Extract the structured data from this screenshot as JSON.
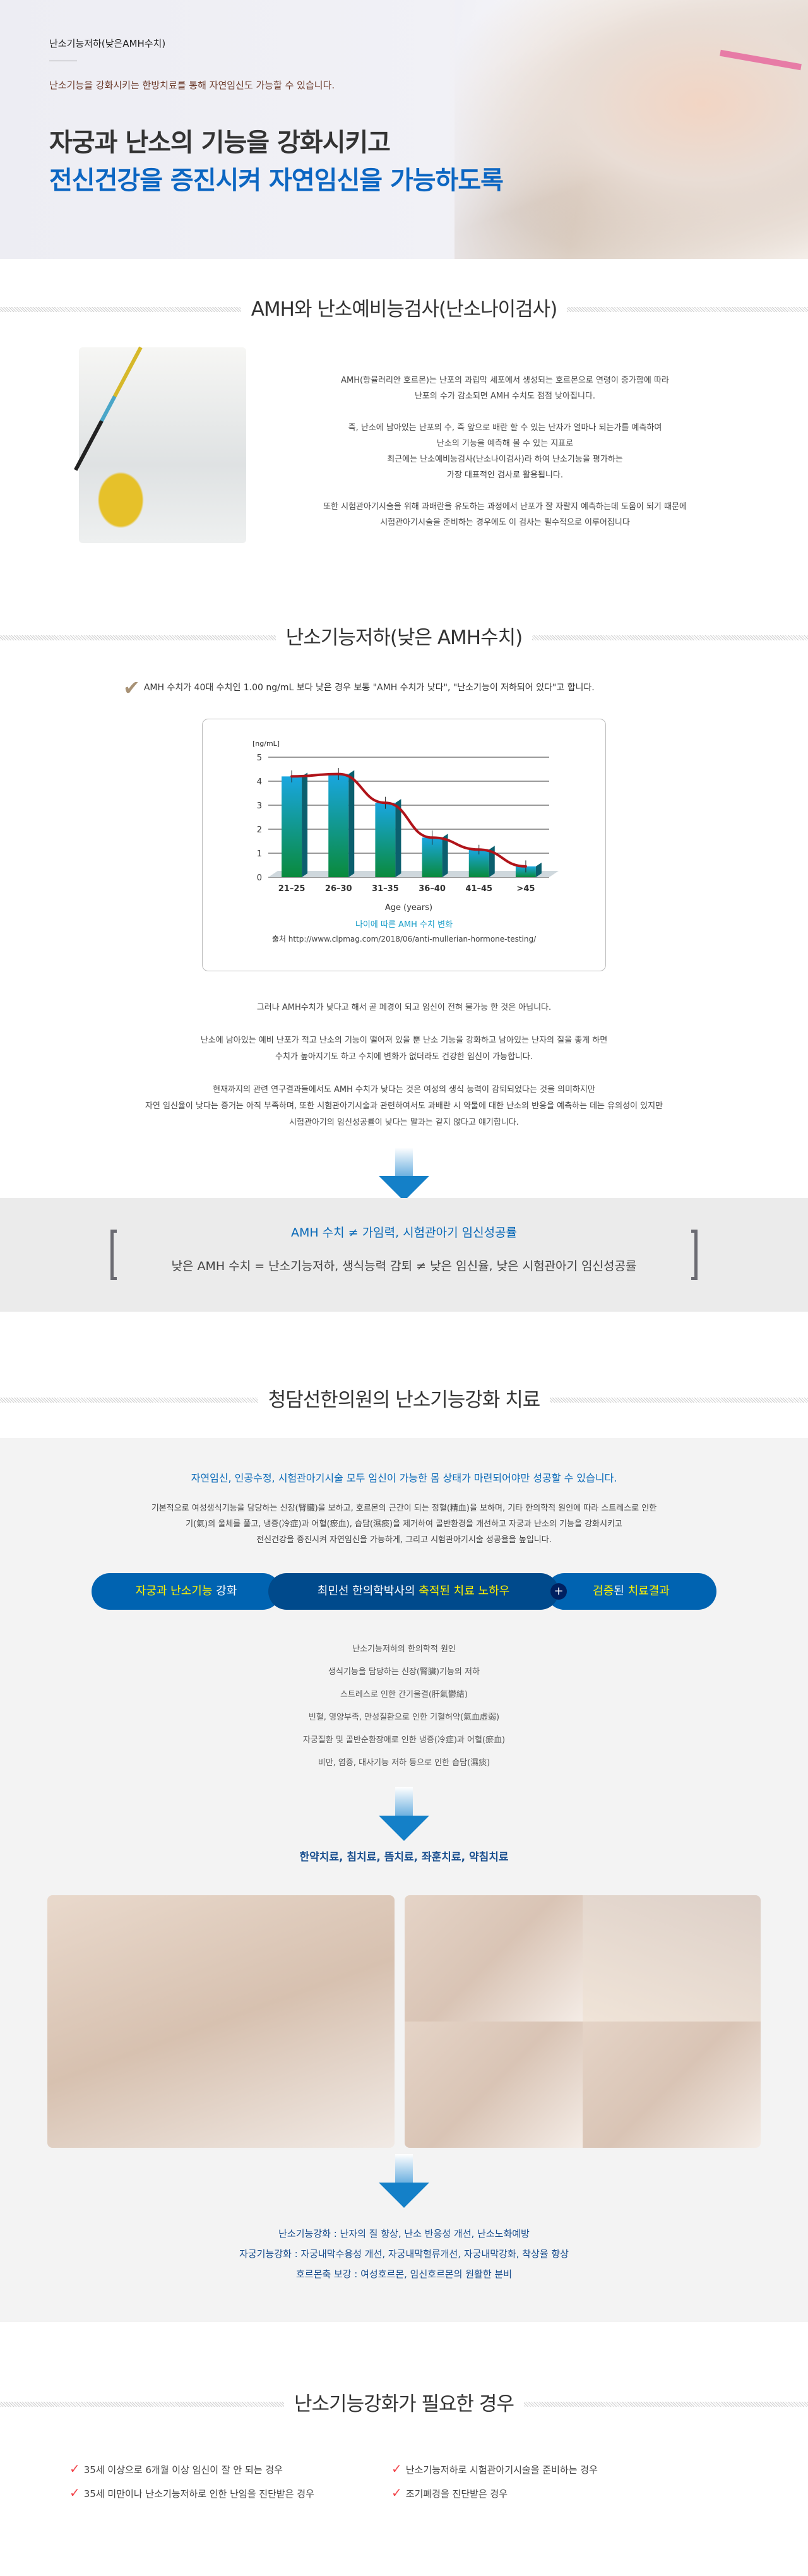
{
  "hero": {
    "label": "난소기능저하(낮은AMH수치)",
    "subtitle": "난소기능을 강화시키는 한방치료를 통해 자연임신도 가능할 수 있습니다.",
    "headline_1": "자궁과 난소의 기능을 강화시키고",
    "headline_2": "전신건강을 증진시켜 자연임신을 가능하도록"
  },
  "amh_section": {
    "title": "AMH와 난소예비능검사(난소나이검사)",
    "paragraphs": [
      [
        "AMH(항뮬러리안 호르몬)는 난포의 과립막 세포에서 생성되는 호르몬으로 연령이 증가함에 따라",
        "난포의 수가 감소되면 AMH 수치도 점점 낮아집니다."
      ],
      [
        "즉, 난소에 남아있는 난포의 수, 즉 앞으로 배란 할 수 있는 난자가 얼마나 되는가를 예측하여",
        "난소의 기능을 예측해 볼 수 있는 지표로",
        "최근에는 난소예비능검사(난소나이검사)라 하여 난소기능을 평가하는",
        "가장 대표적인 검사로 활용됩니다."
      ],
      [
        "또한 시험관아기시술을 위해 과배란을 유도하는 과정에서 난포가 잘 자랄지 예측하는데 도움이 되기 때문에",
        "시험관아기시술을 준비하는 경우에도 이 검사는 필수적으로 이루어집니다"
      ]
    ]
  },
  "low_amh": {
    "title": "난소기능저하(낮은 AMH수치)",
    "check_text": "AMH 수치가 40대 수치인 1.00 ng/mL 보다 낮은 경우 보통 \"AMH 수치가 낮다\", \"난소기능이 저하되어 있다\"고 합니다.",
    "chart_caption": "나이에 따른 AMH 수치 변화",
    "chart_source": "출처 http://www.clpmag.com/2018/06/anti-mullerian-hormone-testing/",
    "paragraphs": [
      [
        "그러나 AMH수치가 낮다고 해서 곧 폐경이 되고 임신이 전혀 불가능 한 것은 아닙니다."
      ],
      [
        "난소에 남아있는 예비 난포가 적고 난소의 기능이 떨어져 있을 뿐 난소 기능을 강화하고 남아있는 난자의 질을 좋게 하면",
        "수치가 높아지기도 하고 수치에 변화가 없더라도 건강한 임신이 가능합니다."
      ],
      [
        "현재까지의 관련 연구결과들에서도 AMH 수치가 낮다는 것은 여성의 생식 능력이 감퇴되었다는 것을 의미하지만",
        "자연 임신율이 낮다는 증거는 아직 부족하며, 또한 시험관아기시술과 관련하여서도 과배란 시 약물에 대한 난소의 반응을 예측하는 데는 유의성이 있지만",
        "시험관아기의 임신성공률이 낮다는 말과는 같지 않다고 얘기합니다."
      ]
    ]
  },
  "chart_data": {
    "type": "bar",
    "categories": [
      "21–25",
      "26–30",
      "31–35",
      "36–40",
      "41–45",
      ">45"
    ],
    "values": [
      4.2,
      4.3,
      3.1,
      1.65,
      1.15,
      0.45
    ],
    "error": [
      0.25,
      0.25,
      0.25,
      0.3,
      0.2,
      0.25
    ],
    "trend_line": true,
    "ylabel": "[ng/mL]",
    "xlabel": "Age (years)",
    "ylim": [
      0,
      5
    ],
    "yticks": [
      0,
      1,
      2,
      3,
      4,
      5
    ],
    "grid": true,
    "colors": {
      "bar_top": "#19a6e0",
      "bar_bottom": "#0a8a3c",
      "trend": "#b0141a"
    }
  },
  "band": {
    "line_1": "AMH 수치 ≠ 가임력, 시험관아기 임신성공률",
    "line_2": "낮은 AMH 수치 = 난소기능저하, 생식능력 감퇴 ≠ 낮은 임신율, 낮은 시험관아기 임신성공률"
  },
  "treatment": {
    "title": "청담선한의원의 난소기능강화 치료",
    "lead": "자연임신, 인공수정, 시험관아기시술 모두 임신이 가능한 몸 상태가 마련되어야만 성공할 수 있습니다.",
    "desc": [
      "기본적으로 여성생식기능을 담당하는 신장(腎臟)을 보하고, 호르몬의 근간이 되는 정혈(精血)을 보하며, 기타 한의학적 원인에 따라 스트레스로 인한",
      "기(氣)의 울체를 풀고, 냉증(冷症)과 어혈(瘀血), 습담(濕痰)을 제거하여 골반환경을 개선하고 자궁과 난소의 기능을 강화시키고",
      "전신건강을 증진시켜 자연임신을 가능하게, 그리고 시험관아기시술 성공율을 높입니다."
    ],
    "pills": [
      {
        "y1": "자궁과 난소기능",
        "w": " 강화"
      },
      {
        "w": "최민선 한의학박사의 ",
        "y1": "축적된 치료 노하우"
      },
      {
        "y1": "검증",
        "w": "된 ",
        "y2": "치료결과"
      }
    ],
    "plus": "+",
    "causes": [
      "난소기능저하의 한의학적 원인",
      "생식기능을 담당하는 신장(腎臟)기능의 저하",
      "스트레스로 인한 간기울결(肝氣鬱結)",
      "빈혈, 영양부족, 만성질환으로 인한 기혈허약(氣血虛弱)",
      "자궁질환 및 골반순환장애로 인한 냉증(冷症)과 어혈(瘀血)",
      "비만, 염증, 대사기능 저하 등으로 인한 습담(濕痰)"
    ],
    "methods": "한약치료, 침치료, 뜸치료, 좌훈치료, 약침치료",
    "results": [
      "난소기능강화 : 난자의 질 향상, 난소 반응성 개선, 난소노화예방",
      "자궁기능강화 : 자궁내막수용성 개선, 자궁내막혈류개선, 자궁내막강화, 착상율 향상",
      "호르몬축 보강 : 여성호르몬, 임신호르몬의 원활한 분비"
    ]
  },
  "need": {
    "title": "난소기능강화가 필요한 경우",
    "items": [
      "35세 이상으로 6개월 이상 임신이 잘 안 되는 경우",
      "난소기능저하로 시험관아기시술을 준비하는 경우",
      "35세 미만이나 난소기능저하로 인한 난임을 진단받은 경우",
      "조기폐경을 진단받은 경우"
    ],
    "check_icon": "✓"
  }
}
